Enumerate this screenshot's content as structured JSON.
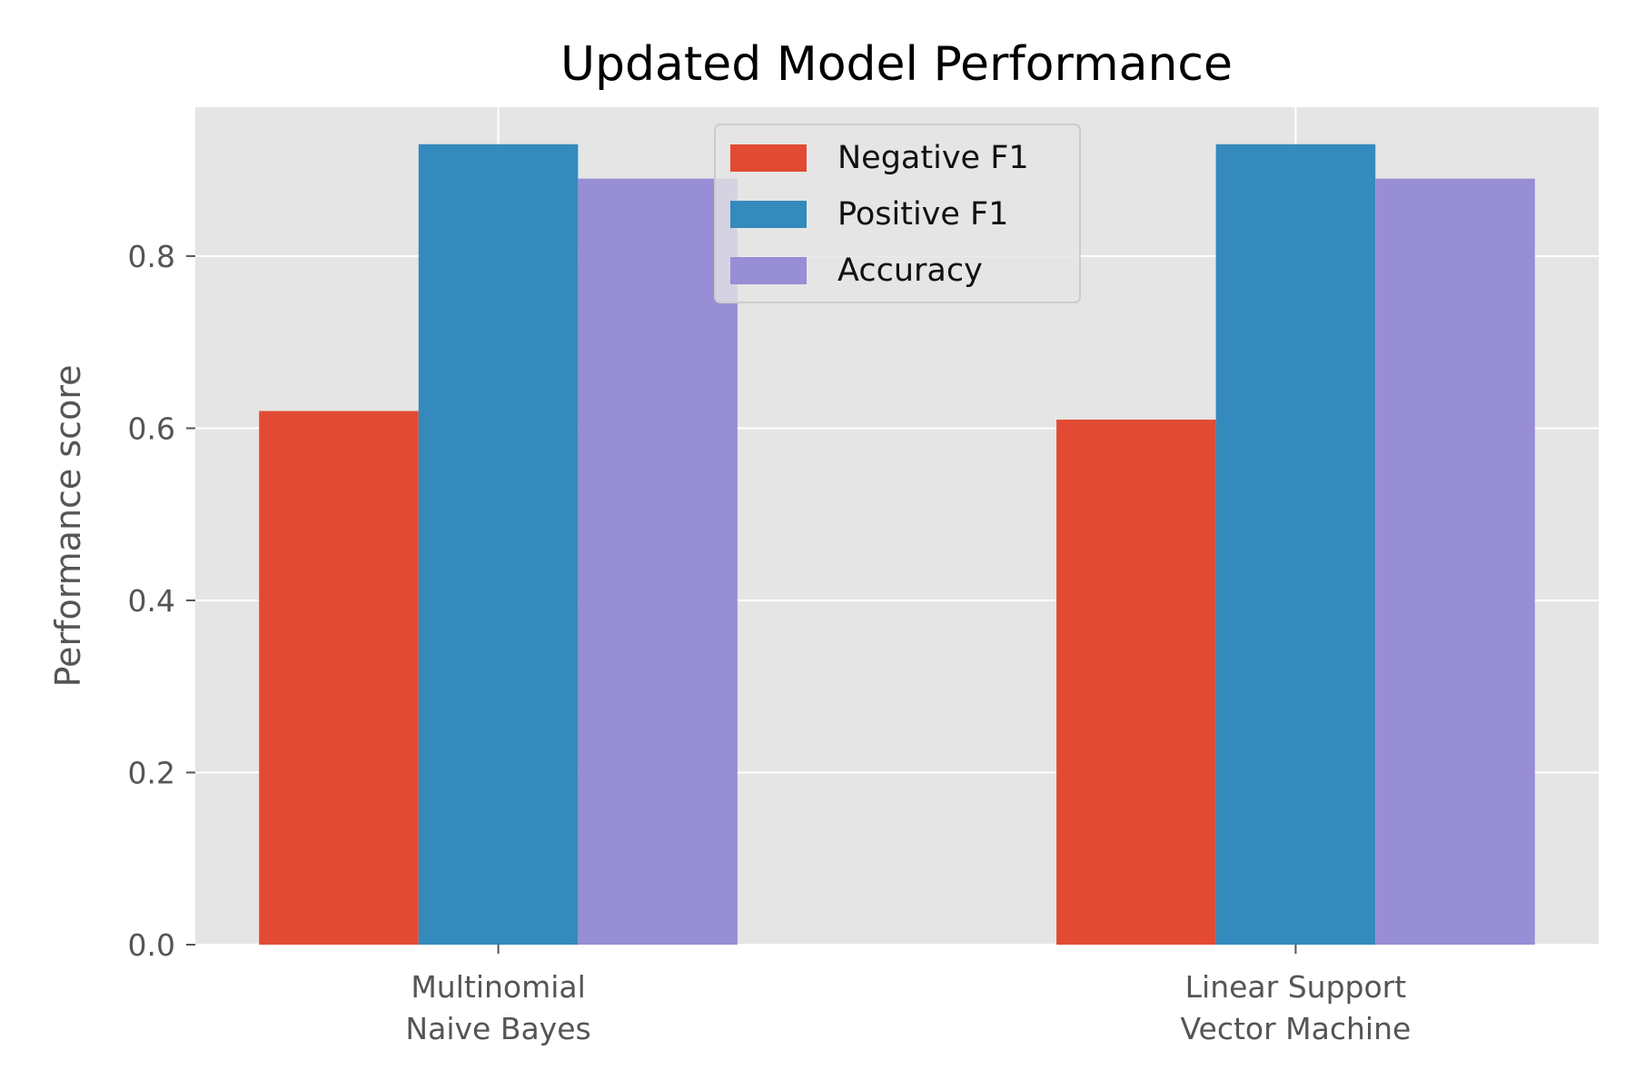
{
  "chart_data": {
    "type": "bar",
    "title": "Updated Model Performance",
    "xlabel": "",
    "ylabel": "Performance score",
    "categories": [
      [
        "Multinomial",
        "Naive Bayes"
      ],
      [
        "Linear Support",
        "Vector Machine"
      ]
    ],
    "series": [
      {
        "name": "Negative F1",
        "values": [
          0.62,
          0.61
        ],
        "color": "#E24A33"
      },
      {
        "name": "Positive F1",
        "values": [
          0.93,
          0.93
        ],
        "color": "#348ABD"
      },
      {
        "name": "Accuracy",
        "values": [
          0.89,
          0.89
        ],
        "color": "#988ED5"
      }
    ],
    "ylim": [
      0,
      0.973
    ],
    "yticks": [
      "0.0",
      "0.2",
      "0.4",
      "0.6",
      "0.8"
    ],
    "grid": true,
    "legend_position": "upper center",
    "style": {
      "plot_background": "#E5E5E5",
      "grid_color": "#FFFFFF",
      "tick_color": "#555555"
    }
  }
}
